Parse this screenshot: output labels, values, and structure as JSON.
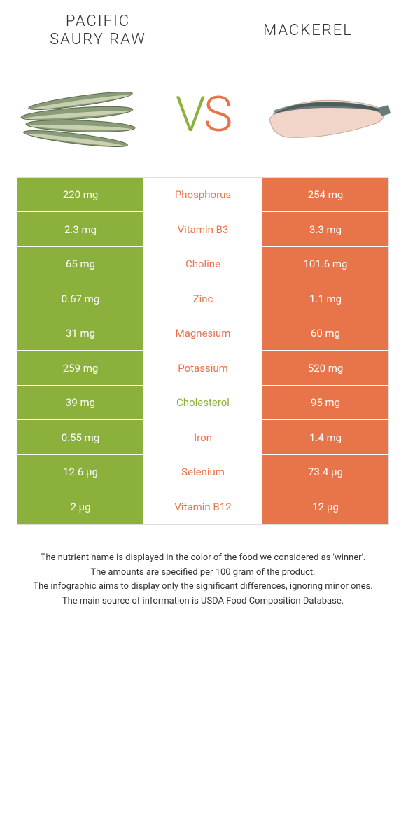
{
  "header": {
    "left_title": "PACIFIC\nSAURY RAW",
    "right_title": "MACKEREL"
  },
  "vs": {
    "v": "V",
    "s": "S"
  },
  "colors": {
    "green": "#8bb03c",
    "orange": "#e8754a"
  },
  "table": {
    "rows": [
      {
        "left": "220 mg",
        "label": "Phosphorus",
        "winner": "orange",
        "right": "254 mg"
      },
      {
        "left": "2.3 mg",
        "label": "Vitamin B3",
        "winner": "orange",
        "right": "3.3 mg"
      },
      {
        "left": "65 mg",
        "label": "Choline",
        "winner": "orange",
        "right": "101.6 mg"
      },
      {
        "left": "0.67 mg",
        "label": "Zinc",
        "winner": "orange",
        "right": "1.1 mg"
      },
      {
        "left": "31 mg",
        "label": "Magnesium",
        "winner": "orange",
        "right": "60 mg"
      },
      {
        "left": "259 mg",
        "label": "Potassium",
        "winner": "orange",
        "right": "520 mg"
      },
      {
        "left": "39 mg",
        "label": "Cholesterol",
        "winner": "green",
        "right": "95 mg"
      },
      {
        "left": "0.55 mg",
        "label": "Iron",
        "winner": "orange",
        "right": "1.4 mg"
      },
      {
        "left": "12.6 µg",
        "label": "Selenium",
        "winner": "orange",
        "right": "73.4 µg"
      },
      {
        "left": "2 µg",
        "label": "Vitamin B12",
        "winner": "orange",
        "right": "12 µg"
      }
    ]
  },
  "footer": {
    "line1": "The nutrient name is displayed in the color of the food we considered as 'winner'.",
    "line2": "The amounts are specified per 100 gram of the product.",
    "line3": "The infographic aims to display only the significant differences, ignoring minor ones.",
    "line4": "The main source of information is USDA Food Composition Database."
  }
}
